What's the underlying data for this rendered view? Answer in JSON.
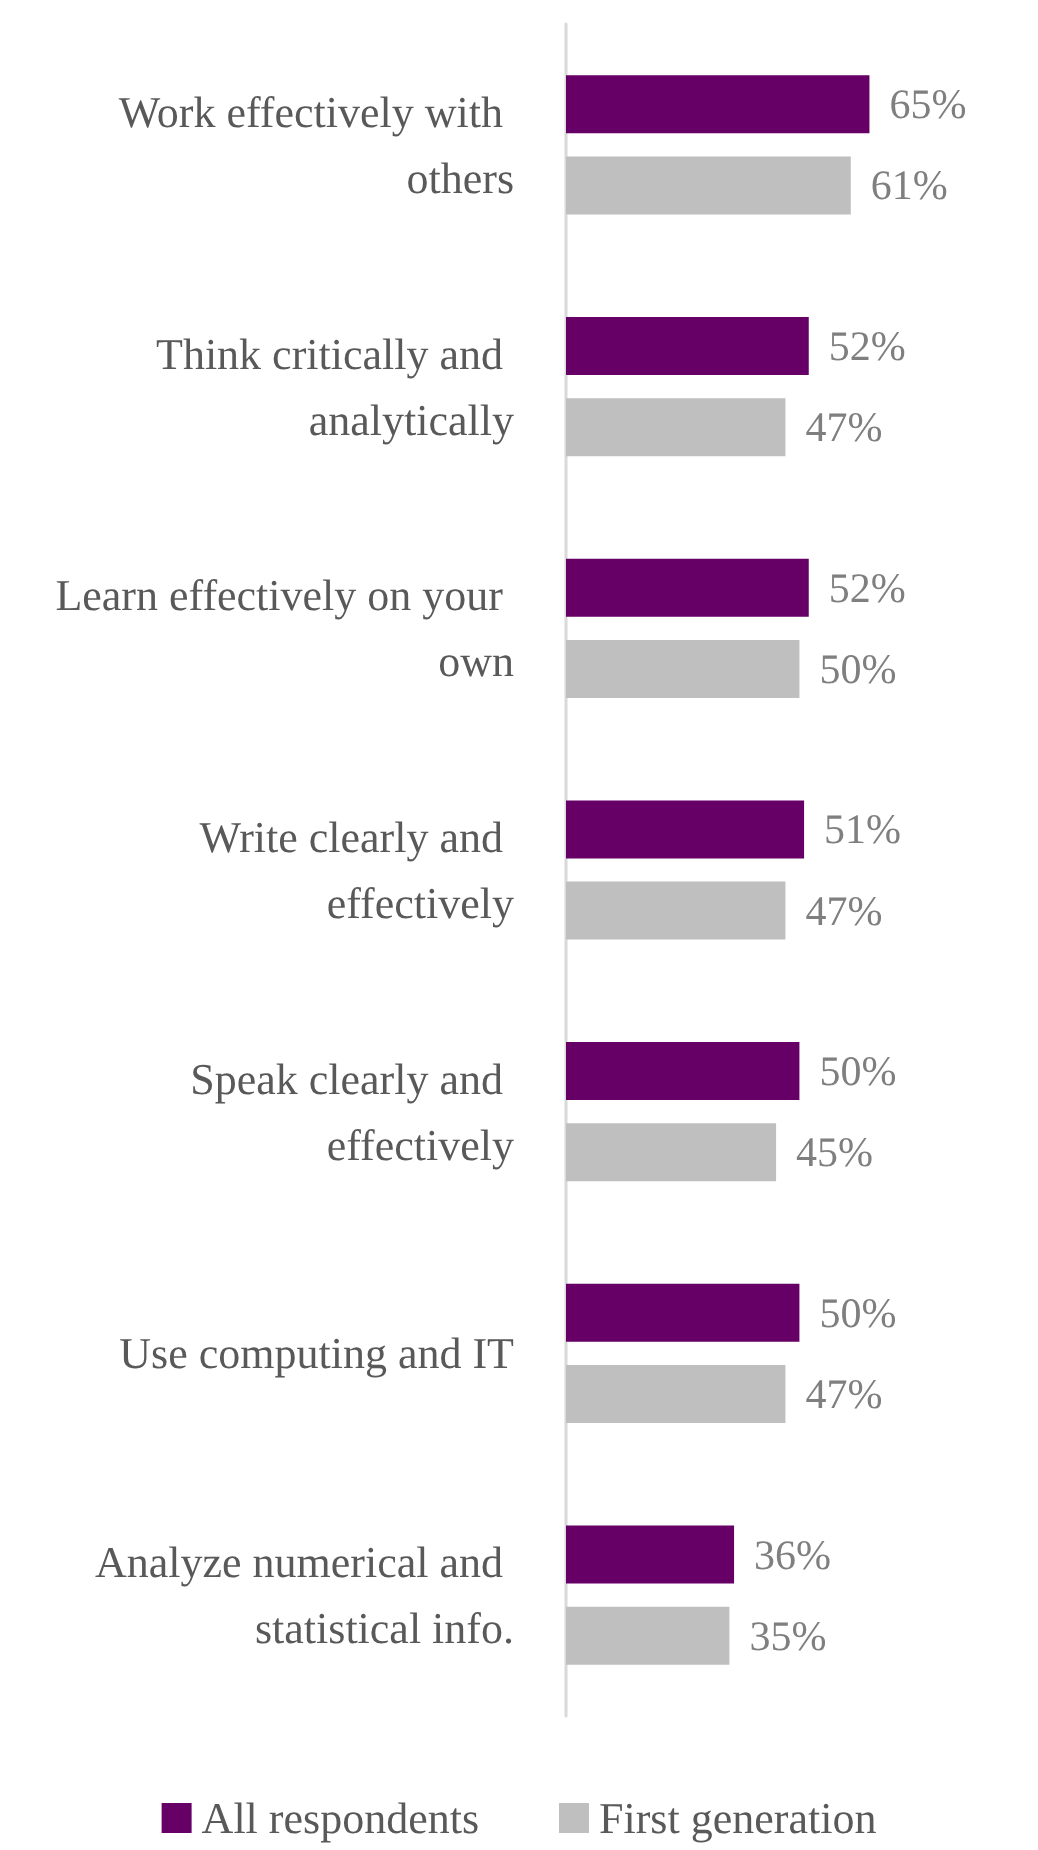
{
  "chart_data": {
    "type": "bar",
    "orientation": "horizontal",
    "legend": "bottom",
    "categories": [
      "Work effectively with others",
      "Think critically and analytically",
      "Learn effectively on your own",
      "Write clearly and effectively",
      "Speak clearly and effectively",
      "Use computing and IT",
      "Analyze numerical and statistical info."
    ],
    "series": [
      {
        "name": "All respondents",
        "color": "#660066",
        "values": [
          65,
          52,
          52,
          51,
          50,
          50,
          36
        ],
        "value_labels": [
          "65%",
          "52%",
          "52%",
          "51%",
          "50%",
          "50%",
          "36%"
        ]
      },
      {
        "name": "First generation",
        "color": "#bfbfbf",
        "values": [
          61,
          47,
          50,
          47,
          45,
          47,
          35
        ],
        "value_labels": [
          "61%",
          "47%",
          "50%",
          "47%",
          "45%",
          "47%",
          "35%"
        ]
      }
    ]
  }
}
